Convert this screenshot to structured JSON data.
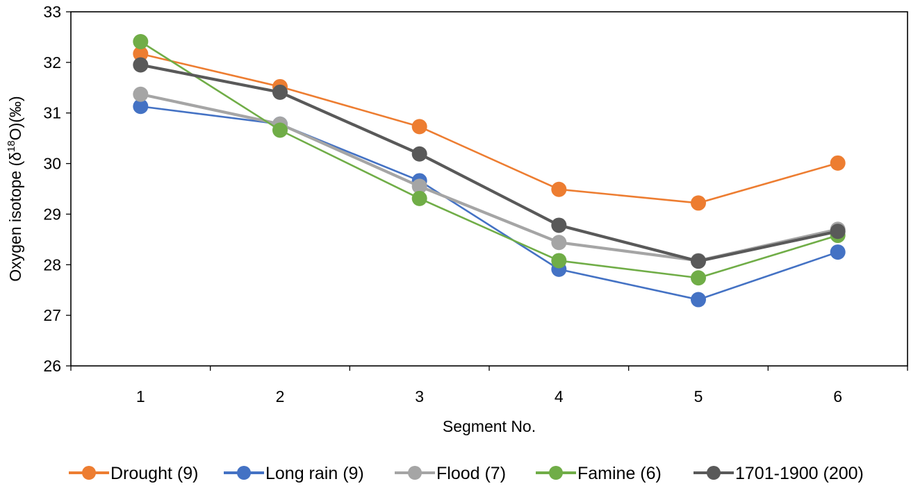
{
  "chart_data": {
    "type": "line",
    "title": "",
    "xlabel": "Segment No.",
    "ylabel": {
      "prefix": "Oxygen isotope (δ",
      "sup": "18",
      "suffix": "O)(‰)"
    },
    "x": [
      "1",
      "2",
      "3",
      "4",
      "5",
      "6"
    ],
    "ylim": [
      26,
      33
    ],
    "yticks": [
      "26",
      "27",
      "28",
      "29",
      "30",
      "31",
      "32",
      "33"
    ],
    "legend_position": "bottom",
    "grid": false,
    "series": [
      {
        "name": "Drought (9)",
        "color": "#ED7D31",
        "values": [
          32.17,
          31.52,
          30.73,
          29.49,
          29.22,
          30.01
        ]
      },
      {
        "name": "Long rain (9)",
        "color": "#4472C4",
        "values": [
          31.13,
          30.78,
          29.66,
          27.91,
          27.31,
          28.25
        ]
      },
      {
        "name": "Flood (7)",
        "color": "#A5A5A5",
        "values": [
          31.37,
          30.78,
          29.55,
          28.44,
          28.08,
          28.7
        ]
      },
      {
        "name": "Famine (6)",
        "color": "#70AD47",
        "values": [
          32.41,
          30.66,
          29.31,
          28.08,
          27.74,
          28.58
        ]
      },
      {
        "name": "1701-1900 (200)",
        "color": "#595959",
        "values": [
          31.95,
          31.41,
          30.19,
          28.78,
          28.07,
          28.66
        ]
      }
    ]
  }
}
